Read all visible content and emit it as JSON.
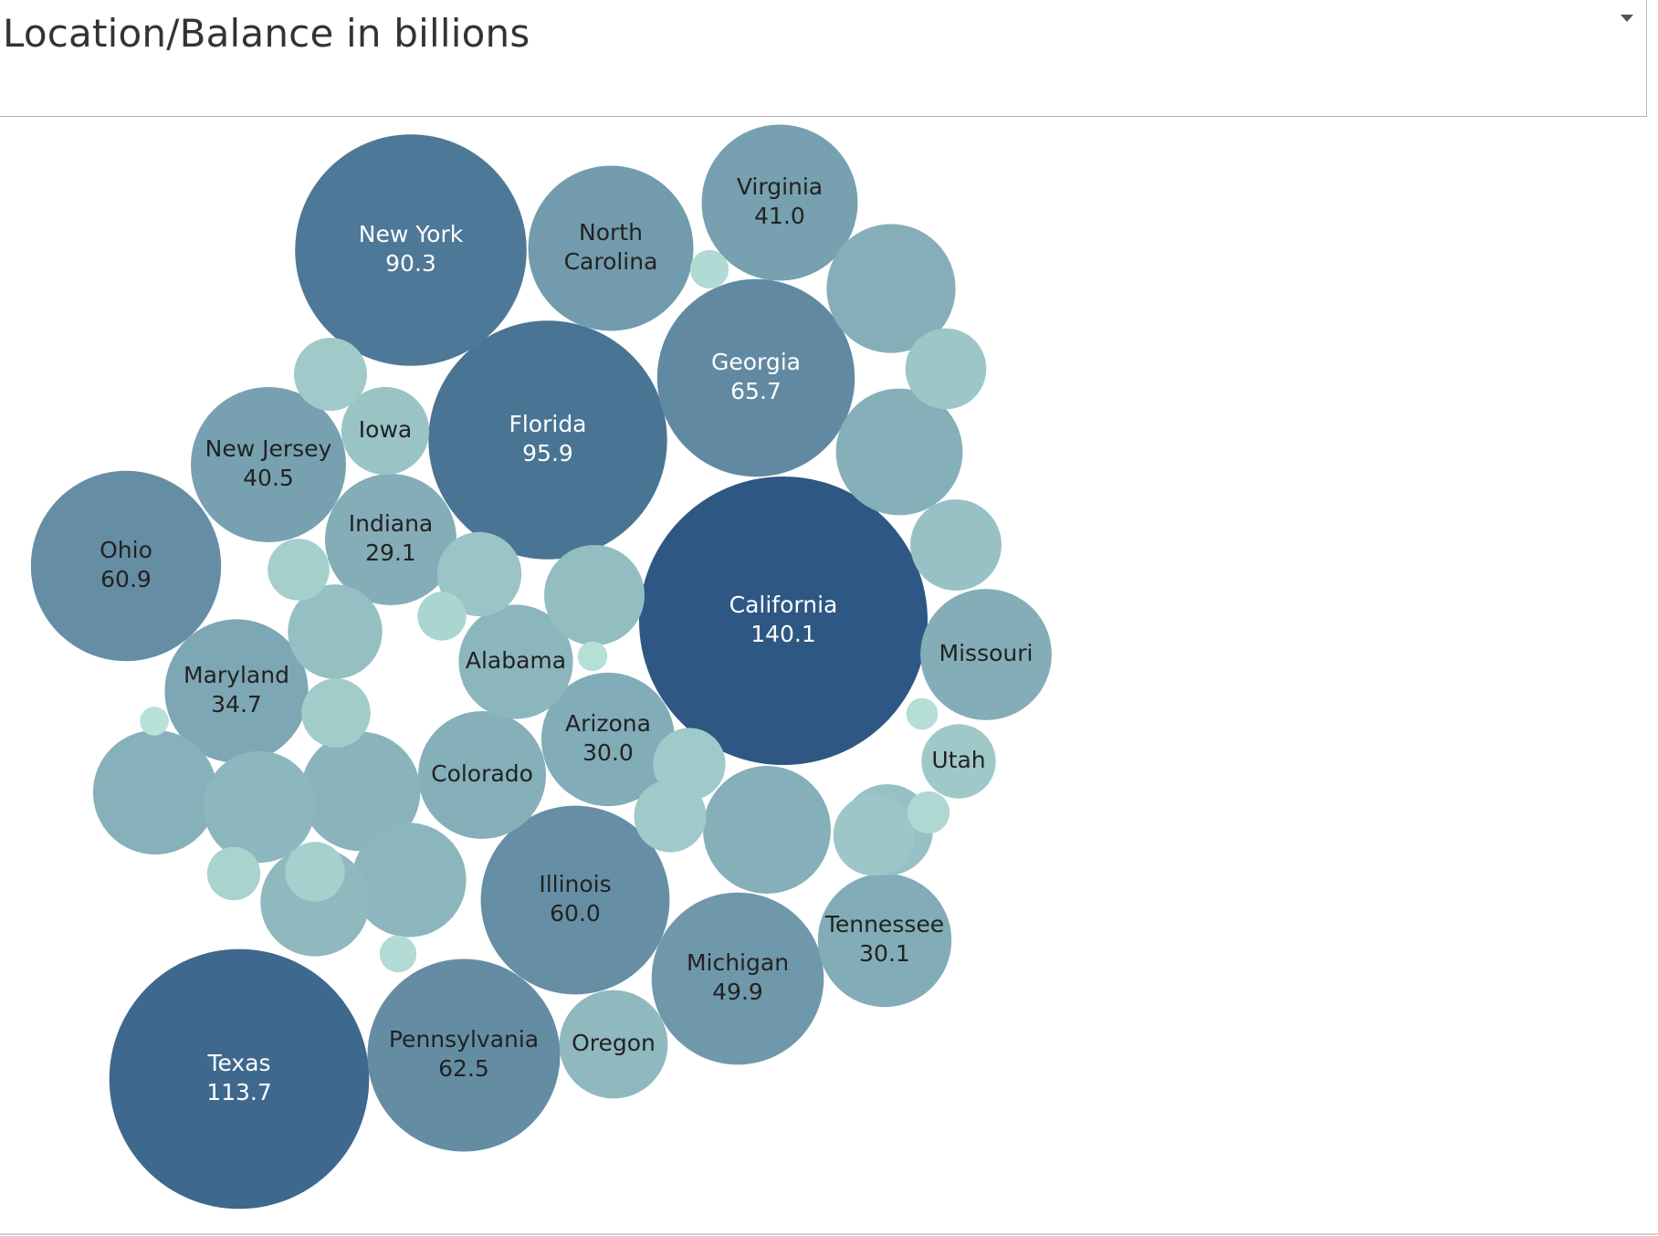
{
  "header": {
    "title": "Location/Balance in billions",
    "dropdown_icon": "caret-down-icon"
  },
  "chart_data": {
    "type": "bubble",
    "title": "Location/Balance in billions",
    "value_unit": "billions",
    "color_scale": [
      "#b8e2d8",
      "#2e5783"
    ],
    "bubbles": [
      {
        "name": "California",
        "value": 140.1,
        "labeled": true,
        "show_value": true
      },
      {
        "name": "Texas",
        "value": 113.7,
        "labeled": true,
        "show_value": true
      },
      {
        "name": "Florida",
        "value": 95.9,
        "labeled": true,
        "show_value": true
      },
      {
        "name": "New York",
        "value": 90.3,
        "labeled": true,
        "show_value": true
      },
      {
        "name": "Georgia",
        "value": 65.7,
        "labeled": true,
        "show_value": true
      },
      {
        "name": "Pennsylvania",
        "value": 62.5,
        "labeled": true,
        "show_value": true
      },
      {
        "name": "Ohio",
        "value": 60.9,
        "labeled": true,
        "show_value": true
      },
      {
        "name": "Illinois",
        "value": 60.0,
        "labeled": true,
        "show_value": true
      },
      {
        "name": "Michigan",
        "value": 49.9,
        "labeled": true,
        "show_value": true
      },
      {
        "name": "North Carolina",
        "value": 46.0,
        "labeled": true,
        "show_value": false
      },
      {
        "name": "Virginia",
        "value": 41.0,
        "labeled": true,
        "show_value": true
      },
      {
        "name": "New Jersey",
        "value": 40.5,
        "labeled": true,
        "show_value": true
      },
      {
        "name": "Missouri",
        "value": 29.0,
        "labeled": true,
        "show_value": false
      },
      {
        "name": "Maryland",
        "value": 34.7,
        "labeled": true,
        "show_value": true
      },
      {
        "name": "Tennessee",
        "value": 30.1,
        "labeled": true,
        "show_value": true
      },
      {
        "name": "Arizona",
        "value": 30.0,
        "labeled": true,
        "show_value": true
      },
      {
        "name": "Indiana",
        "value": 29.1,
        "labeled": true,
        "show_value": true
      },
      {
        "name": "Colorado",
        "value": 27.5,
        "labeled": true,
        "show_value": false
      },
      {
        "name": "Alabama",
        "value": 22.0,
        "labeled": true,
        "show_value": false
      },
      {
        "name": "Oregon",
        "value": 19.8,
        "labeled": true,
        "show_value": false
      },
      {
        "name": "Iowa",
        "value": 13.0,
        "labeled": true,
        "show_value": false
      },
      {
        "name": "Utah",
        "value": 9.3,
        "labeled": true,
        "show_value": false
      },
      {
        "name": "",
        "value": 28.0,
        "labeled": false
      },
      {
        "name": "",
        "value": 27.5,
        "labeled": false
      },
      {
        "name": "",
        "value": 27.0,
        "labeled": false
      },
      {
        "name": "",
        "value": 26.0,
        "labeled": false
      },
      {
        "name": "",
        "value": 24.0,
        "labeled": false
      },
      {
        "name": "",
        "value": 22.0,
        "labeled": false
      },
      {
        "name": "",
        "value": 21.0,
        "labeled": false
      },
      {
        "name": "",
        "value": 20.0,
        "labeled": false
      },
      {
        "name": "",
        "value": 17.0,
        "labeled": false
      },
      {
        "name": "",
        "value": 15.0,
        "labeled": false
      },
      {
        "name": "",
        "value": 14.0,
        "labeled": false
      },
      {
        "name": "",
        "value": 14.0,
        "labeled": false
      },
      {
        "name": "",
        "value": 12.0,
        "labeled": false
      },
      {
        "name": "",
        "value": 11.0,
        "labeled": false
      },
      {
        "name": "",
        "value": 11.0,
        "labeled": false
      },
      {
        "name": "",
        "value": 9.0,
        "labeled": false
      },
      {
        "name": "",
        "value": 8.8,
        "labeled": false
      },
      {
        "name": "",
        "value": 8.8,
        "labeled": false
      },
      {
        "name": "",
        "value": 8.0,
        "labeled": false
      },
      {
        "name": "",
        "value": 6.4,
        "labeled": false
      },
      {
        "name": "",
        "value": 6.0,
        "labeled": false
      },
      {
        "name": "",
        "value": 4.8,
        "labeled": false
      },
      {
        "name": "",
        "value": 4.0,
        "labeled": false
      },
      {
        "name": "",
        "value": 3.0,
        "labeled": false
      },
      {
        "name": "",
        "value": 2.5,
        "labeled": false
      },
      {
        "name": "",
        "value": 2.3,
        "labeled": false
      },
      {
        "name": "",
        "value": 1.7,
        "labeled": false
      },
      {
        "name": "",
        "value": 1.5,
        "labeled": false
      },
      {
        "name": "",
        "value": 1.4,
        "labeled": false
      }
    ]
  }
}
